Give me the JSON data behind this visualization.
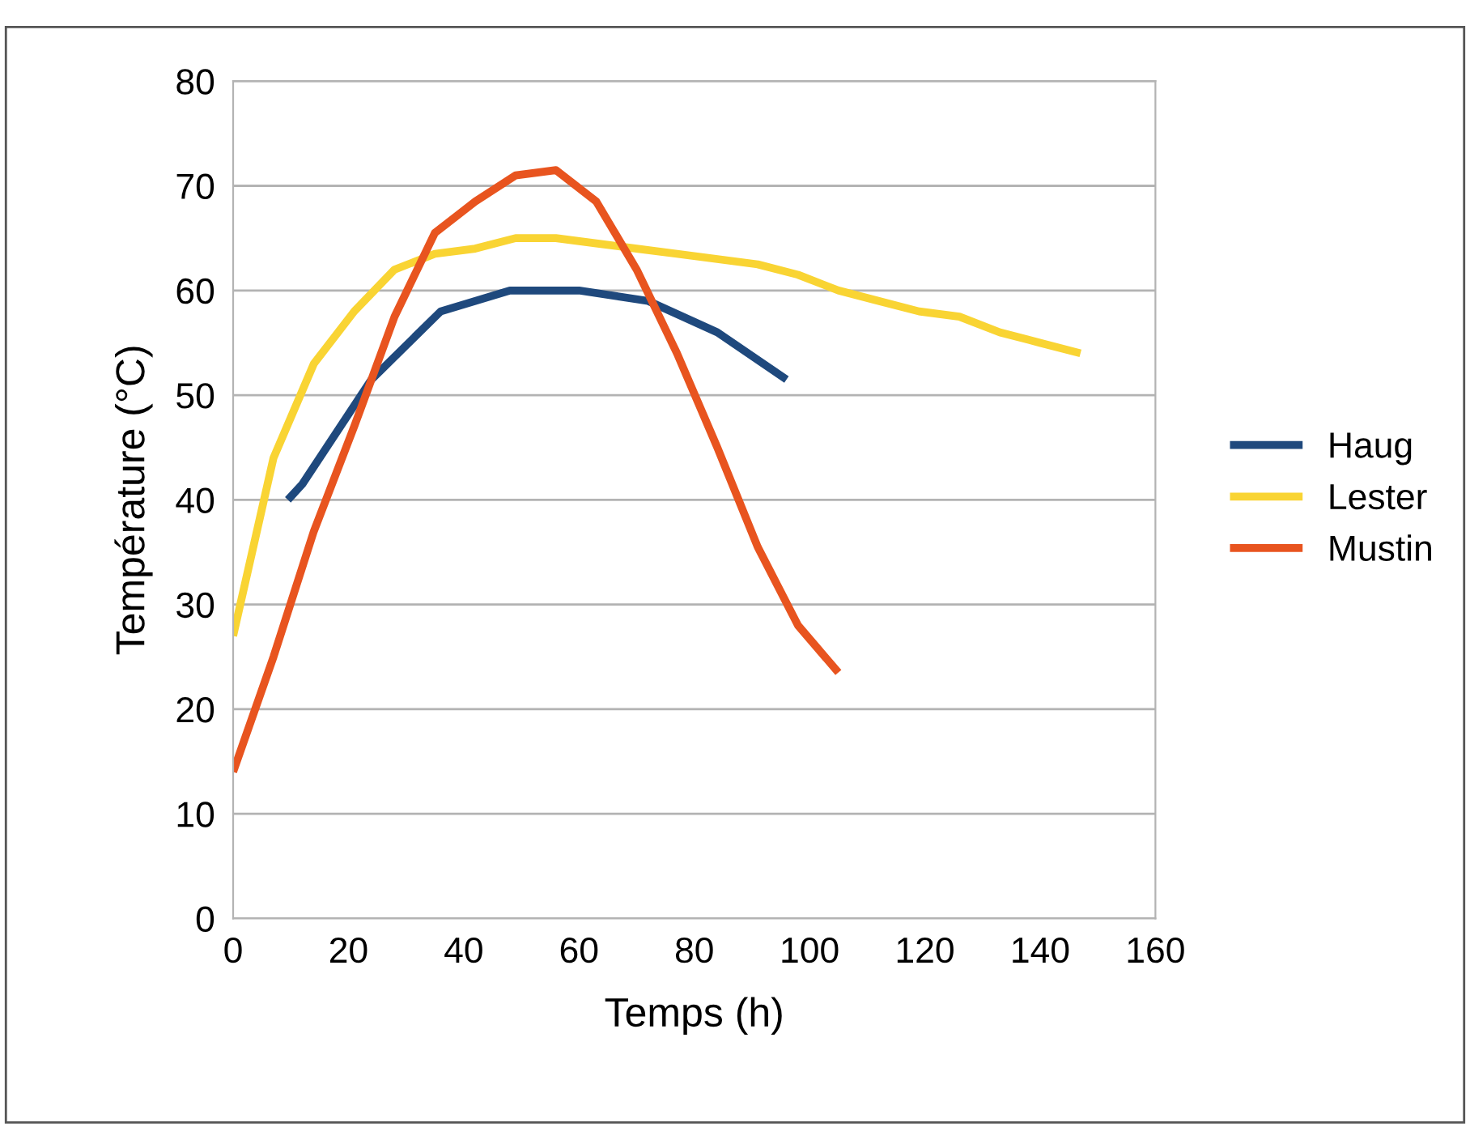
{
  "chart_data": {
    "type": "line",
    "xlabel": "Temps (h)",
    "ylabel": "Température (°C)",
    "xlim": [
      0,
      160
    ],
    "xticks": [
      0,
      20,
      40,
      60,
      80,
      100,
      120,
      140,
      160
    ],
    "ylim": [
      0,
      80
    ],
    "yticks": [
      0,
      10,
      20,
      30,
      40,
      50,
      60,
      70,
      80
    ],
    "grid": "y",
    "legend": "right",
    "marker": "none",
    "line_style": "solid",
    "series": [
      {
        "name": "Haug",
        "color": "#1f497d",
        "x": [
          9.5,
          12,
          24,
          36,
          48,
          60,
          72,
          84,
          96
        ],
        "values": [
          40,
          41.5,
          51.5,
          58,
          60,
          60,
          59,
          56,
          51.5
        ]
      },
      {
        "name": "Lester",
        "color": "#f9d433",
        "x": [
          0,
          7,
          14,
          21,
          28,
          35,
          42,
          49,
          56,
          63,
          70,
          77,
          84,
          91,
          98,
          105,
          112,
          119,
          126,
          133,
          140,
          147
        ],
        "values": [
          27,
          44,
          53,
          58,
          62,
          63.5,
          64,
          65,
          65,
          64.5,
          64,
          63.5,
          63,
          62.5,
          61.5,
          60,
          59,
          58,
          57.5,
          56,
          55,
          54
        ]
      },
      {
        "name": "Mustin",
        "color": "#e8541f",
        "x": [
          0,
          7,
          14,
          21,
          28,
          35,
          42,
          49,
          56,
          63,
          70,
          77,
          84,
          91,
          98,
          105
        ],
        "values": [
          14,
          25,
          37,
          47,
          57.5,
          65.5,
          68.5,
          71,
          71.5,
          68.5,
          62,
          54,
          45,
          35.5,
          28,
          23.5
        ]
      }
    ]
  }
}
